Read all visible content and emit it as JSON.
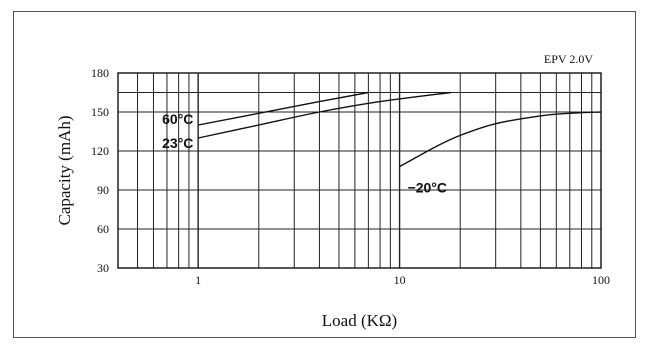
{
  "chart_data": {
    "type": "line",
    "title": "",
    "annotation": "EPV 2.0V",
    "xlabel": "Load (KΩ)",
    "ylabel": "Capacity (mAh)",
    "x_scale": "log",
    "xlim": [
      0.4,
      100
    ],
    "ylim": [
      30,
      180
    ],
    "x_ticks": [
      1,
      10,
      100
    ],
    "x_tick_labels": [
      "1",
      "10",
      "100"
    ],
    "y_ticks": [
      30,
      60,
      90,
      120,
      150,
      180
    ],
    "y_tick_labels": [
      "30",
      "60",
      "90",
      "120",
      "150",
      "180"
    ],
    "grid": true,
    "extra_hlines": [
      165
    ],
    "series": [
      {
        "name": "60°C",
        "label_text": "60°C",
        "x": [
          1,
          2,
          4,
          7
        ],
        "y": [
          140,
          149,
          158,
          165
        ]
      },
      {
        "name": "23°C",
        "label_text": "23°C",
        "x": [
          1,
          2,
          4,
          8,
          18
        ],
        "y": [
          130,
          140,
          150,
          158,
          165
        ]
      },
      {
        "name": "-20°C",
        "label_text": "−20°C",
        "x": [
          10,
          15,
          20,
          30,
          50,
          70,
          100
        ],
        "y": [
          108,
          123,
          132,
          141,
          147,
          149,
          150
        ]
      }
    ]
  }
}
